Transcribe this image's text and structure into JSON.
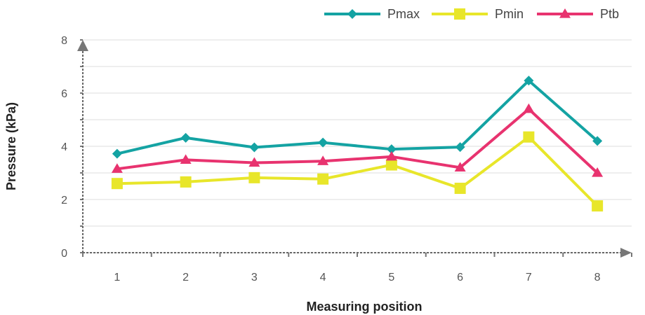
{
  "chart_data": {
    "type": "line",
    "title": "",
    "xlabel": "Measuring position",
    "ylabel": "Pressure (kPa)",
    "categories": [
      "1",
      "2",
      "3",
      "4",
      "5",
      "6",
      "7",
      "8"
    ],
    "ylim": [
      0,
      8
    ],
    "yticks": [
      "0",
      "2",
      "4",
      "6",
      "8"
    ],
    "grid": true,
    "legend_position": "top-right",
    "series": [
      {
        "name": "Pmax",
        "color": "#14a3a3",
        "marker": "diamond",
        "values": [
          3.72,
          4.32,
          3.96,
          4.14,
          3.89,
          3.97,
          6.47,
          4.2
        ]
      },
      {
        "name": "Pmin",
        "color": "#e8e62a",
        "marker": "square",
        "values": [
          2.6,
          2.66,
          2.82,
          2.77,
          3.3,
          2.42,
          4.35,
          1.76
        ]
      },
      {
        "name": "Ptb",
        "color": "#e8336f",
        "marker": "triangle",
        "values": [
          3.15,
          3.49,
          3.38,
          3.44,
          3.61,
          3.2,
          5.4,
          3.0
        ]
      }
    ]
  }
}
